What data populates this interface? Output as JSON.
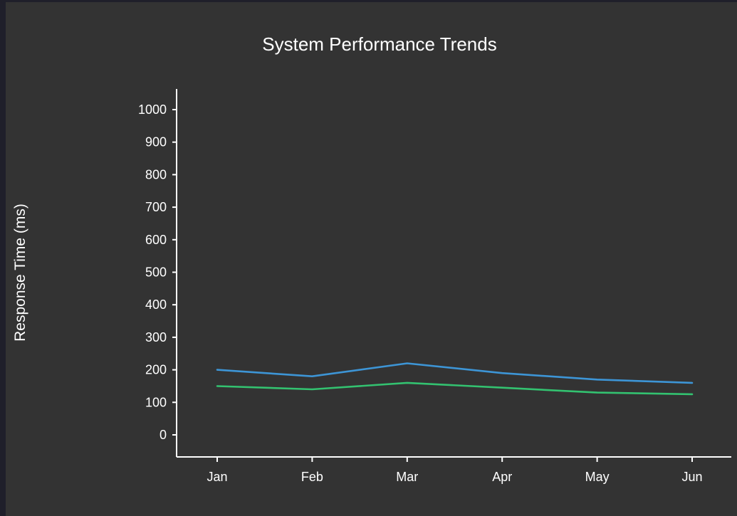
{
  "chart_data": {
    "type": "line",
    "title": "System Performance Trends",
    "xlabel": "",
    "ylabel": "Response Time (ms)",
    "categories": [
      "Jan",
      "Feb",
      "Mar",
      "Apr",
      "May",
      "Jun"
    ],
    "ylim": [
      0,
      1000
    ],
    "yticks": [
      "0",
      "100",
      "200",
      "300",
      "400",
      "500",
      "600",
      "700",
      "800",
      "900",
      "1000"
    ],
    "series": [
      {
        "color": "#3d95d6",
        "values": [
          200,
          180,
          220,
          190,
          170,
          160
        ]
      },
      {
        "color": "#33c270",
        "values": [
          150,
          140,
          160,
          145,
          130,
          125
        ]
      }
    ],
    "grid": false,
    "legend": "none"
  }
}
